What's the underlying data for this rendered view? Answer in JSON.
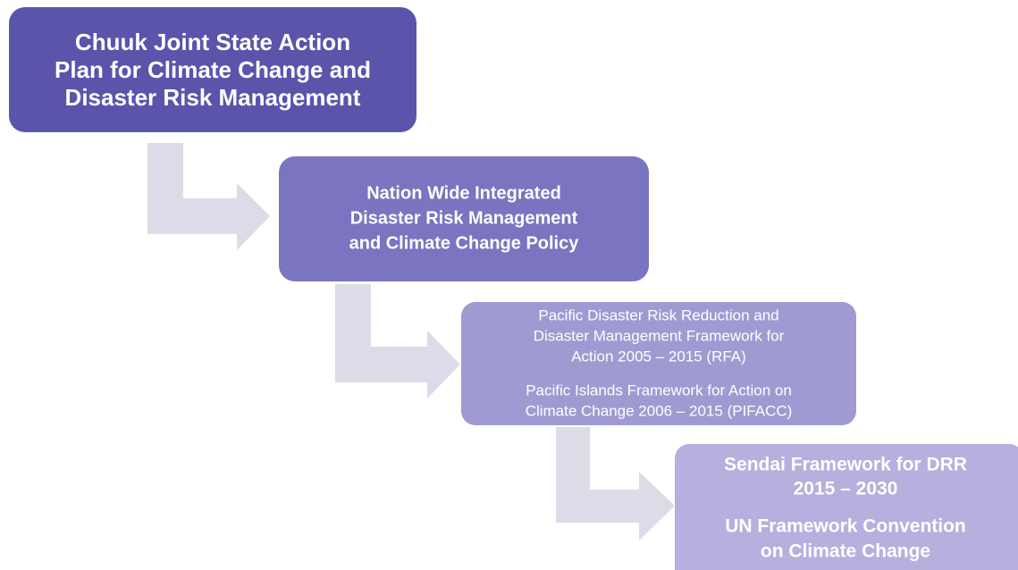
{
  "nodes": [
    {
      "lines": [
        "Chuuk Joint State Action",
        "Plan for Climate Change and",
        "Disaster Risk Management"
      ]
    },
    {
      "lines": [
        "Nation Wide Integrated",
        "Disaster Risk Management",
        "and Climate Change Policy"
      ]
    },
    {
      "lines": [
        "Pacific Disaster Risk Reduction and",
        "Disaster Management Framework for",
        "Action 2005 – 2015 (RFA)",
        "Pacific Islands Framework for Action on",
        "Climate Change 2006 – 2015 (PIFACC)"
      ]
    },
    {
      "lines": [
        "Sendai Framework for DRR",
        "2015 – 2030",
        "UN Framework Convention",
        "on Climate Change"
      ]
    }
  ]
}
